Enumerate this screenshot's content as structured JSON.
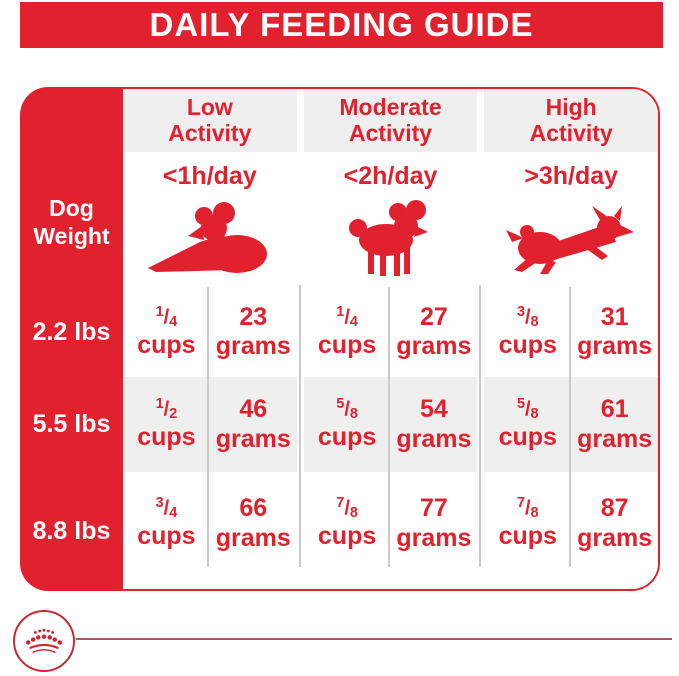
{
  "colors": {
    "red": "#E2212E",
    "row_gray": "#EFEFEF",
    "divider": "#C9C9C9",
    "footer_line": "#A65D5D"
  },
  "ui": {
    "banner": {
      "title": "DAILY FEEDING GUIDE"
    },
    "weight_header": "Dog\nWeight",
    "activity_columns": [
      {
        "id": "low",
        "label": "Low\nActivity",
        "hours": "<1h/day",
        "dog_icon": "lying-dog-icon"
      },
      {
        "id": "moderate",
        "label": "Moderate\nActivity",
        "hours": "<2h/day",
        "dog_icon": "standing-dog-icon"
      },
      {
        "id": "high",
        "label": "High\nActivity",
        "hours": ">3h/day",
        "dog_icon": "running-dog-icon"
      }
    ],
    "units": {
      "cups": "cups",
      "grams": "grams"
    },
    "rows": [
      {
        "weight": "2.2 lbs",
        "low": {
          "cups": "1/4",
          "grams": "23"
        },
        "moderate": {
          "cups": "1/4",
          "grams": "27"
        },
        "high": {
          "cups": "3/8",
          "grams": "31"
        }
      },
      {
        "weight": "5.5 lbs",
        "low": {
          "cups": "1/2",
          "grams": "46"
        },
        "moderate": {
          "cups": "5/8",
          "grams": "54"
        },
        "high": {
          "cups": "5/8",
          "grams": "61"
        }
      },
      {
        "weight": "8.8 lbs",
        "low": {
          "cups": "3/4",
          "grams": "66"
        },
        "moderate": {
          "cups": "7/8",
          "grams": "77"
        },
        "high": {
          "cups": "7/8",
          "grams": "87"
        }
      }
    ],
    "footer": {
      "logo_icon": "royal-canin-crown-icon"
    }
  },
  "chart_data": {
    "type": "table",
    "title": "DAILY FEEDING GUIDE",
    "row_header": "Dog Weight",
    "columns": [
      "Low Activity (<1h/day)",
      "Moderate Activity (<2h/day)",
      "High Activity (>3h/day)"
    ],
    "units": [
      "cups",
      "grams"
    ],
    "rows": [
      {
        "weight": "2.2 lbs",
        "low_cups": "1/4",
        "low_grams": 23,
        "moderate_cups": "1/4",
        "moderate_grams": 27,
        "high_cups": "3/8",
        "high_grams": 31
      },
      {
        "weight": "5.5 lbs",
        "low_cups": "1/2",
        "low_grams": 46,
        "moderate_cups": "5/8",
        "moderate_grams": 54,
        "high_cups": "5/8",
        "high_grams": 61
      },
      {
        "weight": "8.8 lbs",
        "low_cups": "3/4",
        "low_grams": 66,
        "moderate_cups": "7/8",
        "moderate_grams": 77,
        "high_cups": "7/8",
        "high_grams": 87
      }
    ]
  }
}
